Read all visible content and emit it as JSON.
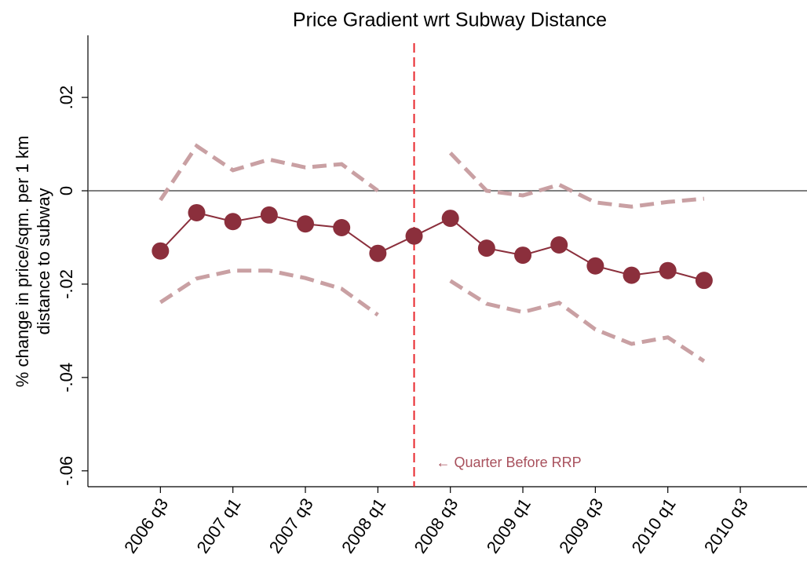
{
  "chart_data": {
    "type": "line",
    "title": "Price Gradient wrt Subway Distance",
    "y_label": [
      "% change in price/sqm. per 1 km",
      "distance to subway"
    ],
    "x": [
      2006.5,
      2006.75,
      2007.0,
      2007.25,
      2007.5,
      2007.75,
      2008.0,
      2008.25,
      2008.5,
      2008.75,
      2009.0,
      2009.25,
      2009.5,
      2009.75,
      2010.0,
      2010.25
    ],
    "series": [
      {
        "color": "#8b2f3c",
        "style": "solid-markers",
        "values": [
          -0.0129,
          -0.0047,
          -0.0066,
          -0.0052,
          -0.0071,
          -0.0079,
          -0.0134,
          -0.0097,
          -0.0059,
          -0.0123,
          -0.0138,
          -0.0116,
          -0.0161,
          -0.0181,
          -0.0171,
          -0.0192
        ]
      },
      {
        "color": "#c9a0a3",
        "style": "dashed",
        "values": [
          -0.002,
          0.0096,
          0.0044,
          0.0067,
          0.005,
          0.0057,
          0.0,
          null,
          0.0081,
          0.0,
          -0.001,
          0.0013,
          -0.0025,
          -0.0034,
          -0.0024,
          -0.0017
        ]
      },
      {
        "color": "#c9a0a3",
        "style": "dashed",
        "values": [
          -0.0239,
          -0.0188,
          -0.0171,
          -0.0171,
          -0.0187,
          -0.021,
          -0.0266,
          null,
          -0.0193,
          -0.0242,
          -0.026,
          -0.024,
          -0.0297,
          -0.0328,
          -0.0314,
          -0.0365
        ]
      }
    ],
    "xlim": [
      2006.0,
      2010.96
    ],
    "xticks": [
      {
        "value": 2006.5,
        "label": "2006 q3"
      },
      {
        "value": 2007.0,
        "label": "2007 q1"
      },
      {
        "value": 2007.5,
        "label": "2007 q3"
      },
      {
        "value": 2008.0,
        "label": "2008 q1"
      },
      {
        "value": 2008.5,
        "label": "2008 q3"
      },
      {
        "value": 2009.0,
        "label": "2009 q1"
      },
      {
        "value": 2009.5,
        "label": "2009 q3"
      },
      {
        "value": 2010.0,
        "label": "2010 q1"
      },
      {
        "value": 2010.5,
        "label": "2010 q3"
      }
    ],
    "ylim": [
      -0.0634,
      0.0333
    ],
    "yticks": [
      {
        "value": 0.02,
        "label": ".02"
      },
      0,
      {
        "value": -0.02,
        "label": "-.02"
      },
      {
        "value": -0.04,
        "label": "-.04"
      },
      {
        "value": -0.06,
        "label": "-.06"
      }
    ],
    "zero_line": true,
    "vline": {
      "x": 2008.25,
      "color": "#e8262b",
      "label": "← Quarter Before RRP",
      "label_color": "#a8505c"
    }
  }
}
